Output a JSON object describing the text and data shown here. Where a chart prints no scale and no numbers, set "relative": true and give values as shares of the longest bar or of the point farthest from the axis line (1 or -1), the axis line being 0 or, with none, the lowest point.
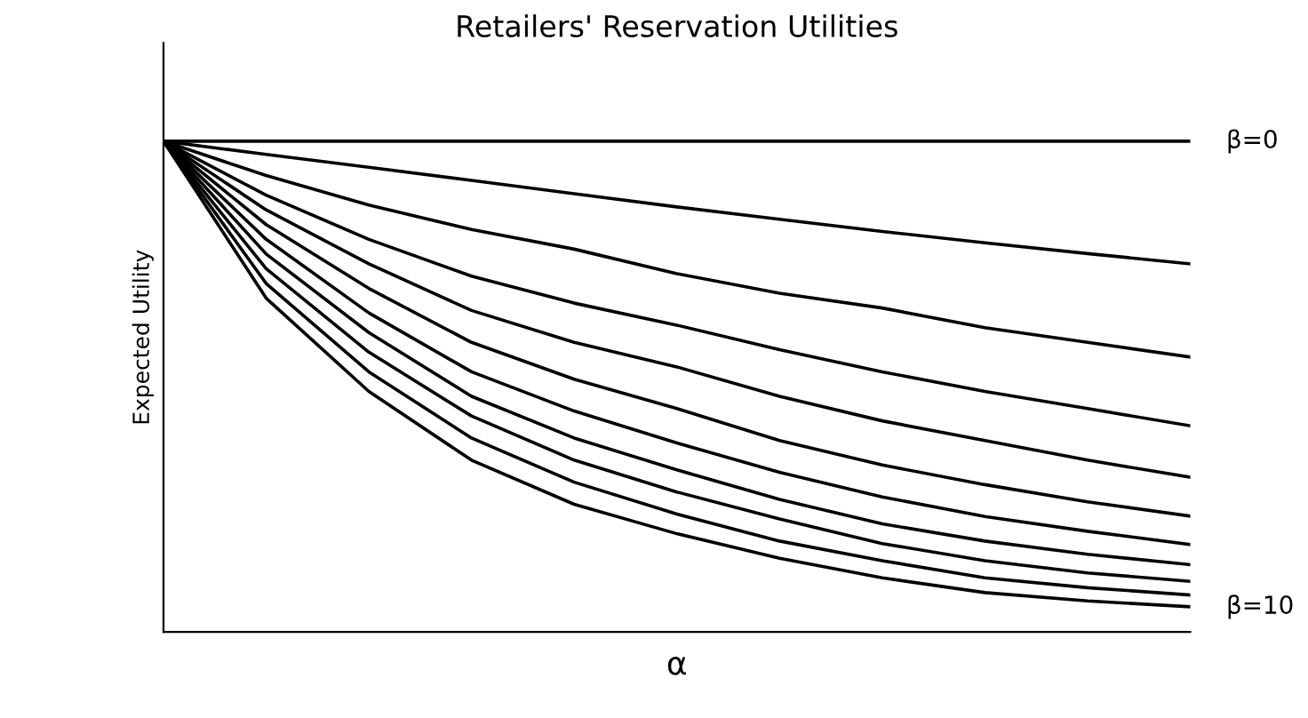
{
  "chart_data": {
    "type": "line",
    "title": "Retailers' Reservation Utilities",
    "xlabel": "α",
    "ylabel": "Expected Utility",
    "relative": true,
    "marker": "none",
    "line_style": "solid",
    "grid": false,
    "legend": false,
    "categories": [
      null,
      null,
      null,
      null,
      null,
      null,
      null,
      null,
      null,
      null,
      null
    ],
    "series": [
      {
        "name": "β=0",
        "color": "#000000",
        "values": [
          1,
          1,
          1,
          1,
          1,
          1,
          1,
          1,
          1,
          1,
          1
        ]
      },
      {
        "color": "#000000",
        "values": [
          1,
          0.973,
          0.947,
          0.92,
          0.893,
          0.866,
          0.841,
          0.816,
          0.793,
          0.771,
          0.75
        ]
      },
      {
        "color": "#000000",
        "values": [
          1,
          0.93,
          0.87,
          0.82,
          0.78,
          0.73,
          0.69,
          0.66,
          0.62,
          0.59,
          0.56
        ]
      },
      {
        "color": "#000000",
        "values": [
          1,
          0.89,
          0.8,
          0.725,
          0.67,
          0.625,
          0.575,
          0.53,
          0.49,
          0.455,
          0.42
        ]
      },
      {
        "color": "#000000",
        "values": [
          1,
          0.86,
          0.75,
          0.655,
          0.59,
          0.54,
          0.48,
          0.43,
          0.39,
          0.35,
          0.315
        ]
      },
      {
        "color": "#000000",
        "values": [
          1,
          0.83,
          0.7,
          0.59,
          0.515,
          0.455,
          0.39,
          0.34,
          0.3,
          0.265,
          0.236
        ]
      },
      {
        "color": "#000000",
        "values": [
          1,
          0.8,
          0.65,
          0.53,
          0.45,
          0.385,
          0.325,
          0.275,
          0.235,
          0.205,
          0.178
        ]
      },
      {
        "color": "#000000",
        "values": [
          1,
          0.77,
          0.61,
          0.48,
          0.395,
          0.33,
          0.27,
          0.22,
          0.185,
          0.158,
          0.137
        ]
      },
      {
        "color": "#000000",
        "values": [
          1,
          0.74,
          0.57,
          0.44,
          0.35,
          0.285,
          0.23,
          0.18,
          0.145,
          0.12,
          0.103
        ]
      },
      {
        "color": "#000000",
        "values": [
          1,
          0.71,
          0.53,
          0.395,
          0.305,
          0.24,
          0.185,
          0.145,
          0.11,
          0.09,
          0.075
        ]
      },
      {
        "name": "β=10",
        "color": "#000000",
        "values": [
          1,
          0.68,
          0.49,
          0.35,
          0.26,
          0.2,
          0.15,
          0.11,
          0.08,
          0.063,
          0.051
        ]
      }
    ]
  }
}
